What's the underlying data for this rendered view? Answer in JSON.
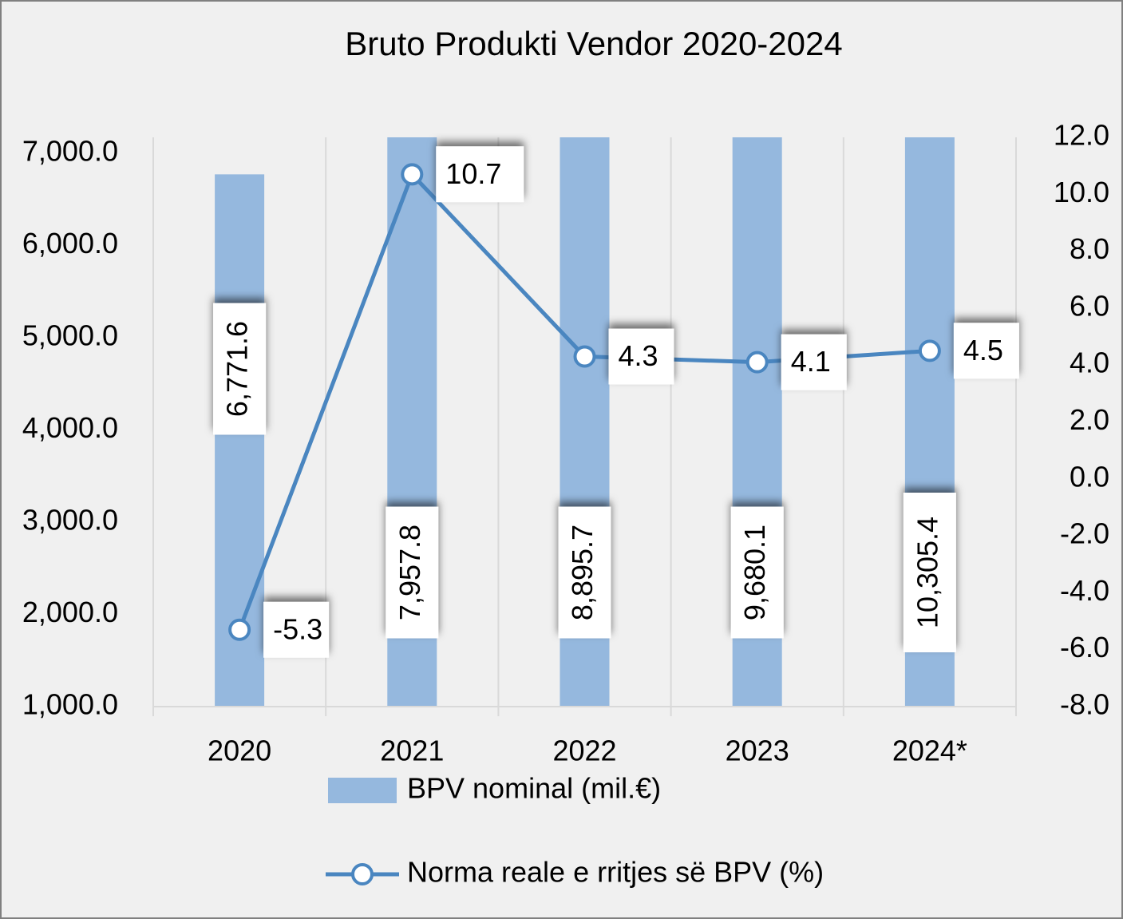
{
  "chart_data": {
    "type": "bar-line",
    "title": "Bruto Produkti Vendor  2020-2024",
    "categories": [
      "2020",
      "2021",
      "2022",
      "2023",
      "2024*"
    ],
    "series": [
      {
        "name": "BPV nominal (mil.€)",
        "type": "bar",
        "color": "#95b8de",
        "values": [
          6771.6,
          7957.8,
          8895.7,
          9680.1,
          10305.4
        ],
        "value_labels": [
          "6,771.6",
          "7,957.8",
          "8,895.7",
          "9,680.1",
          "10,305.4"
        ]
      },
      {
        "name": "Norma reale e rritjes së BPV (%)",
        "type": "line",
        "axis": "y2",
        "color": "#4a86c0",
        "values": [
          -5.3,
          10.7,
          4.3,
          4.1,
          4.5
        ]
      }
    ],
    "ylim": [
      1000,
      7173
    ],
    "yticks": [
      {
        "value": 1000,
        "label": "1,000.0"
      },
      {
        "value": 2000,
        "label": "2,000.0"
      },
      {
        "value": 3000,
        "label": "3,000.0"
      },
      {
        "value": 4000,
        "label": "4,000.0"
      },
      {
        "value": 5000,
        "label": "5,000.0"
      },
      {
        "value": 6000,
        "label": "6,000.0"
      },
      {
        "value": 7000,
        "label": "7,000.0"
      }
    ],
    "y2lim": [
      -8,
      12
    ],
    "y2ticks": [
      {
        "value": -8,
        "label": "-8.0"
      },
      {
        "value": -6,
        "label": "-6.0"
      },
      {
        "value": -4,
        "label": "-4.0"
      },
      {
        "value": -2,
        "label": "-2.0"
      },
      {
        "value": 0,
        "label": "0.0"
      },
      {
        "value": 2,
        "label": "2.0"
      },
      {
        "value": 4,
        "label": "4.0"
      },
      {
        "value": 6,
        "label": "6.0"
      },
      {
        "value": 8,
        "label": "8.0"
      },
      {
        "value": 10,
        "label": "10.0"
      },
      {
        "value": 12,
        "label": "12.0"
      }
    ],
    "grid": true,
    "legend": "bottom"
  }
}
